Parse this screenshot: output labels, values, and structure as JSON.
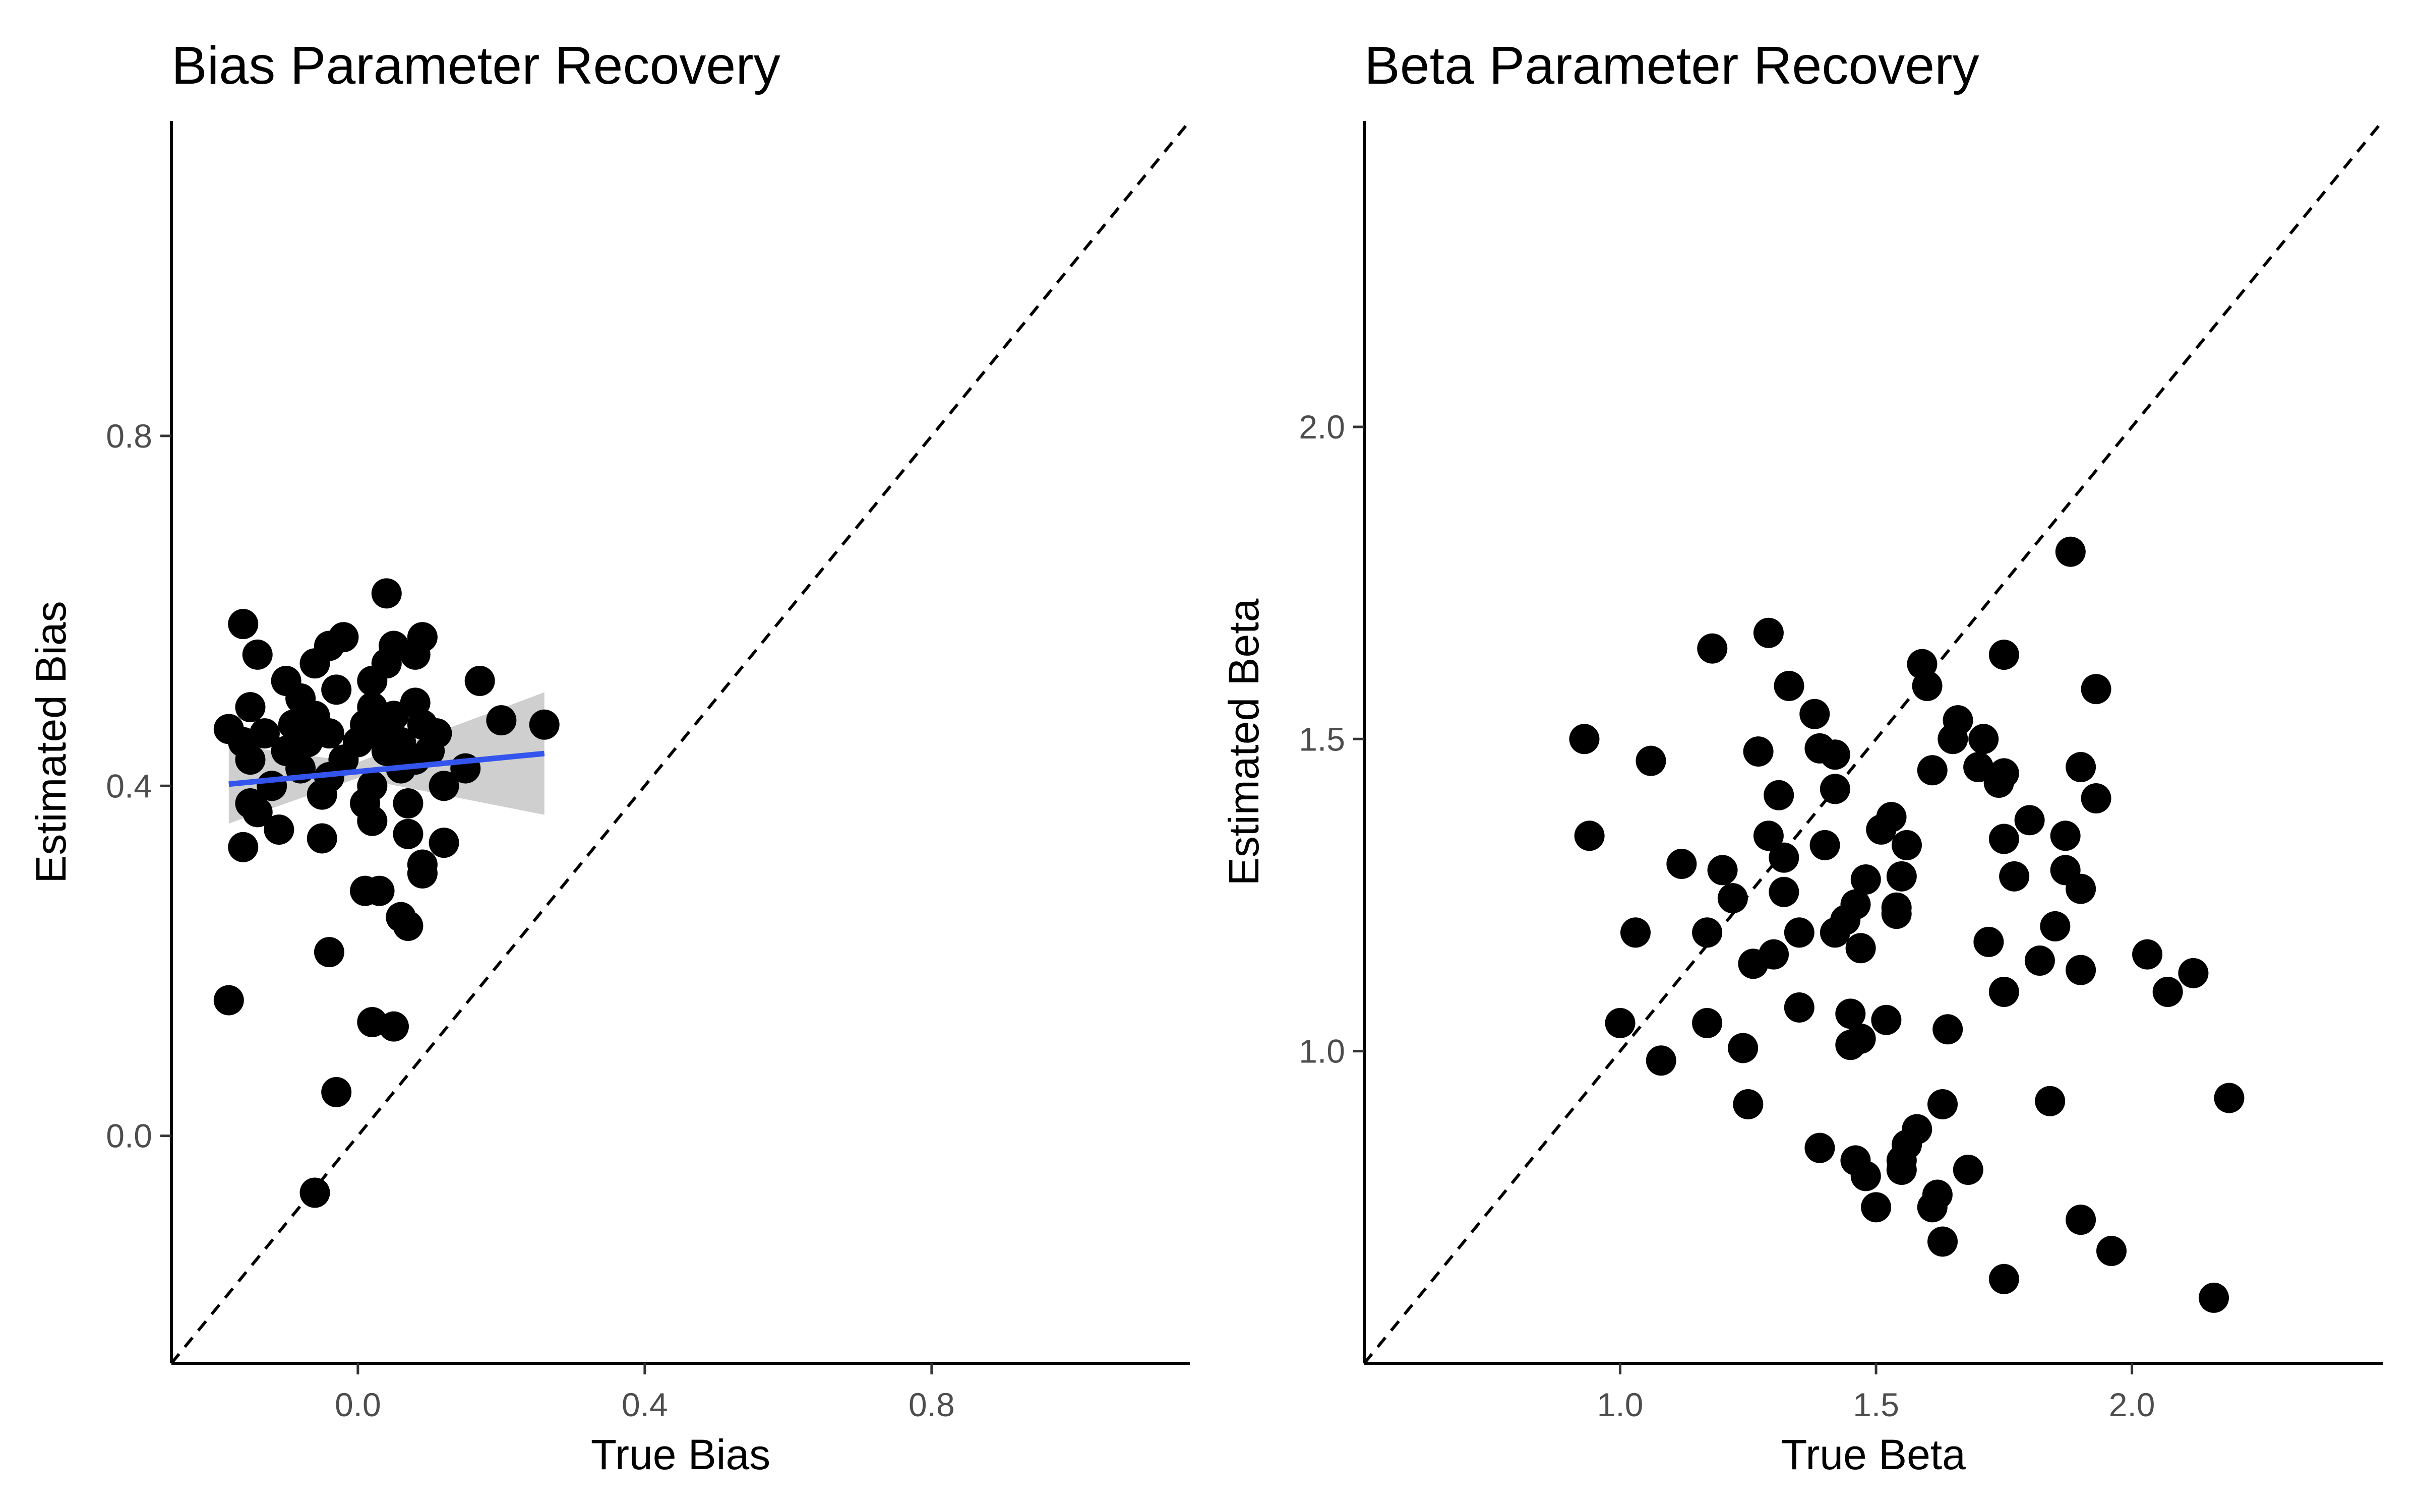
{
  "chart_data": [
    {
      "type": "scatter",
      "title": "Bias Parameter Recovery",
      "xlabel": "True Bias",
      "ylabel": "Estimated Bias",
      "xlim": [
        -0.26,
        1.16
      ],
      "ylim": [
        -0.26,
        1.16
      ],
      "xticks": [
        0.0,
        0.4,
        0.8
      ],
      "yticks": [
        0.0,
        0.4,
        0.8
      ],
      "xtick_labels": [
        "0.0",
        "0.4",
        "0.8"
      ],
      "ytick_labels": [
        "0.0",
        "0.4",
        "0.8"
      ],
      "grid": false,
      "reference_line": "identity (dashed)",
      "fit": {
        "method": "linear",
        "x": [
          -0.18,
          0.26
        ],
        "y": [
          0.402,
          0.437
        ],
        "band_color": "#bfbfbf",
        "line_color": "#3355ee"
      },
      "point_color": "#000000",
      "points": [
        {
          "x": -0.06,
          "y": -0.065
        },
        {
          "x": -0.03,
          "y": 0.05
        },
        {
          "x": -0.18,
          "y": 0.155
        },
        {
          "x": 0.02,
          "y": 0.13
        },
        {
          "x": 0.05,
          "y": 0.125
        },
        {
          "x": -0.04,
          "y": 0.21
        },
        {
          "x": 0.07,
          "y": 0.24
        },
        {
          "x": 0.06,
          "y": 0.25
        },
        {
          "x": 0.01,
          "y": 0.28
        },
        {
          "x": 0.03,
          "y": 0.28
        },
        {
          "x": 0.09,
          "y": 0.3
        },
        {
          "x": 0.09,
          "y": 0.31
        },
        {
          "x": 0.12,
          "y": 0.335
        },
        {
          "x": -0.05,
          "y": 0.34
        },
        {
          "x": -0.16,
          "y": 0.33
        },
        {
          "x": 0.07,
          "y": 0.345
        },
        {
          "x": 0.02,
          "y": 0.36
        },
        {
          "x": -0.14,
          "y": 0.37
        },
        {
          "x": -0.11,
          "y": 0.35
        },
        {
          "x": 0.01,
          "y": 0.38
        },
        {
          "x": 0.07,
          "y": 0.38
        },
        {
          "x": -0.15,
          "y": 0.38
        },
        {
          "x": -0.05,
          "y": 0.39
        },
        {
          "x": -0.12,
          "y": 0.4
        },
        {
          "x": 0.02,
          "y": 0.4
        },
        {
          "x": 0.12,
          "y": 0.4
        },
        {
          "x": -0.04,
          "y": 0.41
        },
        {
          "x": -0.08,
          "y": 0.42
        },
        {
          "x": 0.06,
          "y": 0.42
        },
        {
          "x": 0.15,
          "y": 0.42
        },
        {
          "x": -0.15,
          "y": 0.43
        },
        {
          "x": -0.02,
          "y": 0.43
        },
        {
          "x": 0.08,
          "y": 0.43
        },
        {
          "x": -0.1,
          "y": 0.44
        },
        {
          "x": 0.04,
          "y": 0.44
        },
        {
          "x": 0.1,
          "y": 0.44
        },
        {
          "x": -0.16,
          "y": 0.45
        },
        {
          "x": -0.07,
          "y": 0.45
        },
        {
          "x": 0.0,
          "y": 0.45
        },
        {
          "x": 0.06,
          "y": 0.45
        },
        {
          "x": -0.13,
          "y": 0.46
        },
        {
          "x": -0.04,
          "y": 0.46
        },
        {
          "x": 0.03,
          "y": 0.46
        },
        {
          "x": 0.11,
          "y": 0.46
        },
        {
          "x": -0.18,
          "y": 0.465
        },
        {
          "x": -0.09,
          "y": 0.47
        },
        {
          "x": 0.01,
          "y": 0.47
        },
        {
          "x": 0.09,
          "y": 0.47
        },
        {
          "x": 0.2,
          "y": 0.475
        },
        {
          "x": 0.26,
          "y": 0.47
        },
        {
          "x": -0.06,
          "y": 0.48
        },
        {
          "x": 0.05,
          "y": 0.48
        },
        {
          "x": -0.15,
          "y": 0.49
        },
        {
          "x": 0.02,
          "y": 0.49
        },
        {
          "x": 0.08,
          "y": 0.495
        },
        {
          "x": -0.08,
          "y": 0.5
        },
        {
          "x": -0.03,
          "y": 0.51
        },
        {
          "x": 0.02,
          "y": 0.52
        },
        {
          "x": -0.1,
          "y": 0.52
        },
        {
          "x": 0.17,
          "y": 0.52
        },
        {
          "x": -0.06,
          "y": 0.54
        },
        {
          "x": 0.04,
          "y": 0.54
        },
        {
          "x": -0.14,
          "y": 0.55
        },
        {
          "x": 0.08,
          "y": 0.55
        },
        {
          "x": -0.04,
          "y": 0.56
        },
        {
          "x": 0.05,
          "y": 0.56
        },
        {
          "x": -0.02,
          "y": 0.57
        },
        {
          "x": 0.09,
          "y": 0.57
        },
        {
          "x": -0.16,
          "y": 0.585
        },
        {
          "x": 0.04,
          "y": 0.62
        }
      ]
    },
    {
      "type": "scatter",
      "title": "Beta Parameter Recovery",
      "xlabel": "True Beta",
      "ylabel": "Estimated Beta",
      "xlim": [
        0.5,
        2.49
      ],
      "ylim": [
        0.5,
        2.49
      ],
      "xticks": [
        1.0,
        1.5,
        2.0
      ],
      "yticks": [
        1.0,
        1.5,
        2.0
      ],
      "xtick_labels": [
        "1.0",
        "1.5",
        "2.0"
      ],
      "ytick_labels": [
        "1.0",
        "1.5",
        "2.0"
      ],
      "grid": false,
      "reference_line": "identity (dashed)",
      "point_color": "#000000",
      "points": [
        {
          "x": 0.93,
          "y": 1.5
        },
        {
          "x": 0.94,
          "y": 1.345
        },
        {
          "x": 1.0,
          "y": 1.045
        },
        {
          "x": 1.03,
          "y": 1.19
        },
        {
          "x": 1.06,
          "y": 1.465
        },
        {
          "x": 1.08,
          "y": 0.985
        },
        {
          "x": 1.12,
          "y": 1.3
        },
        {
          "x": 1.17,
          "y": 1.045
        },
        {
          "x": 1.17,
          "y": 1.19
        },
        {
          "x": 1.18,
          "y": 1.645
        },
        {
          "x": 1.2,
          "y": 1.29
        },
        {
          "x": 1.22,
          "y": 1.245
        },
        {
          "x": 1.24,
          "y": 1.005
        },
        {
          "x": 1.25,
          "y": 0.915
        },
        {
          "x": 1.26,
          "y": 1.14
        },
        {
          "x": 1.27,
          "y": 1.48
        },
        {
          "x": 1.29,
          "y": 1.67
        },
        {
          "x": 1.29,
          "y": 1.345
        },
        {
          "x": 1.3,
          "y": 1.155
        },
        {
          "x": 1.31,
          "y": 1.41
        },
        {
          "x": 1.32,
          "y": 1.255
        },
        {
          "x": 1.32,
          "y": 1.31
        },
        {
          "x": 1.33,
          "y": 1.585
        },
        {
          "x": 1.35,
          "y": 1.19
        },
        {
          "x": 1.35,
          "y": 1.07
        },
        {
          "x": 1.38,
          "y": 1.54
        },
        {
          "x": 1.39,
          "y": 1.485
        },
        {
          "x": 1.39,
          "y": 0.845
        },
        {
          "x": 1.4,
          "y": 1.33
        },
        {
          "x": 1.42,
          "y": 1.475
        },
        {
          "x": 1.42,
          "y": 1.42
        },
        {
          "x": 1.42,
          "y": 1.19
        },
        {
          "x": 1.44,
          "y": 1.21
        },
        {
          "x": 1.45,
          "y": 1.06
        },
        {
          "x": 1.45,
          "y": 1.01
        },
        {
          "x": 1.46,
          "y": 1.235
        },
        {
          "x": 1.46,
          "y": 0.825
        },
        {
          "x": 1.47,
          "y": 1.02
        },
        {
          "x": 1.47,
          "y": 1.165
        },
        {
          "x": 1.48,
          "y": 1.275
        },
        {
          "x": 1.48,
          "y": 0.8
        },
        {
          "x": 1.5,
          "y": 0.75
        },
        {
          "x": 1.51,
          "y": 1.355
        },
        {
          "x": 1.52,
          "y": 1.05
        },
        {
          "x": 1.53,
          "y": 1.375
        },
        {
          "x": 1.54,
          "y": 1.23
        },
        {
          "x": 1.54,
          "y": 1.22
        },
        {
          "x": 1.55,
          "y": 1.28
        },
        {
          "x": 1.55,
          "y": 0.825
        },
        {
          "x": 1.55,
          "y": 0.81
        },
        {
          "x": 1.56,
          "y": 1.33
        },
        {
          "x": 1.56,
          "y": 0.85
        },
        {
          "x": 1.58,
          "y": 0.875
        },
        {
          "x": 1.59,
          "y": 1.62
        },
        {
          "x": 1.6,
          "y": 1.585
        },
        {
          "x": 1.61,
          "y": 1.45
        },
        {
          "x": 1.61,
          "y": 0.75
        },
        {
          "x": 1.62,
          "y": 0.77
        },
        {
          "x": 1.63,
          "y": 0.915
        },
        {
          "x": 1.63,
          "y": 0.695
        },
        {
          "x": 1.64,
          "y": 1.035
        },
        {
          "x": 1.65,
          "y": 1.5
        },
        {
          "x": 1.66,
          "y": 1.53
        },
        {
          "x": 1.68,
          "y": 0.81
        },
        {
          "x": 1.7,
          "y": 1.455
        },
        {
          "x": 1.71,
          "y": 1.5
        },
        {
          "x": 1.72,
          "y": 1.175
        },
        {
          "x": 1.74,
          "y": 1.43
        },
        {
          "x": 1.75,
          "y": 1.445
        },
        {
          "x": 1.75,
          "y": 1.34
        },
        {
          "x": 1.75,
          "y": 1.095
        },
        {
          "x": 1.75,
          "y": 1.635
        },
        {
          "x": 1.75,
          "y": 0.635
        },
        {
          "x": 1.77,
          "y": 1.28
        },
        {
          "x": 1.8,
          "y": 1.37
        },
        {
          "x": 1.82,
          "y": 1.145
        },
        {
          "x": 1.84,
          "y": 0.92
        },
        {
          "x": 1.85,
          "y": 1.2
        },
        {
          "x": 1.87,
          "y": 1.29
        },
        {
          "x": 1.87,
          "y": 1.345
        },
        {
          "x": 1.88,
          "y": 1.8
        },
        {
          "x": 1.9,
          "y": 1.26
        },
        {
          "x": 1.9,
          "y": 1.455
        },
        {
          "x": 1.9,
          "y": 1.13
        },
        {
          "x": 1.9,
          "y": 0.73
        },
        {
          "x": 1.93,
          "y": 1.405
        },
        {
          "x": 1.93,
          "y": 1.58
        },
        {
          "x": 1.96,
          "y": 0.68
        },
        {
          "x": 2.03,
          "y": 1.155
        },
        {
          "x": 2.07,
          "y": 1.095
        },
        {
          "x": 2.12,
          "y": 1.125
        },
        {
          "x": 2.16,
          "y": 0.605
        },
        {
          "x": 2.19,
          "y": 0.925
        }
      ]
    }
  ]
}
